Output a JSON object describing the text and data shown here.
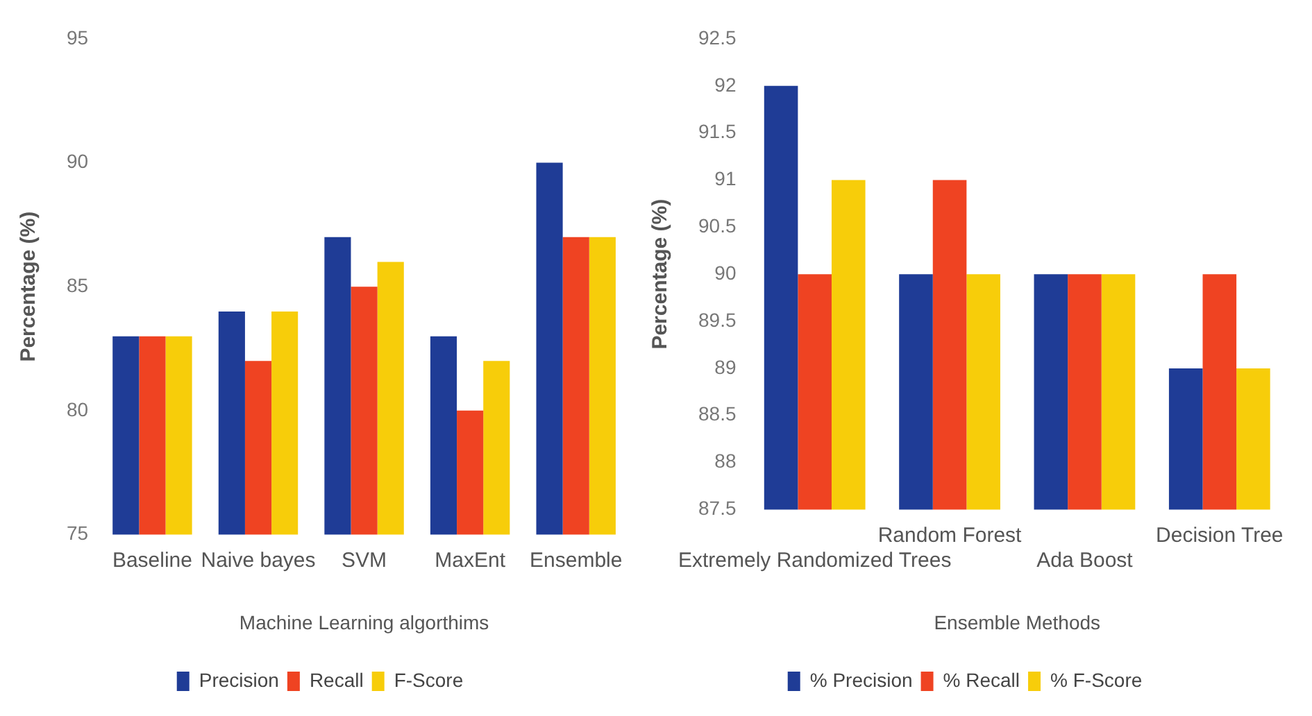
{
  "chart_data": [
    {
      "type": "bar",
      "xlabel": "Machine Learning algorthims",
      "ylabel": "Percentage (%)",
      "categories": [
        "Baseline",
        "Naive bayes",
        "SVM",
        "MaxEnt",
        "Ensemble"
      ],
      "series": [
        {
          "name": "Precision",
          "color": "#1f3c96",
          "values": [
            83,
            84,
            87,
            83,
            90
          ]
        },
        {
          "name": "Recall",
          "color": "#ef4322",
          "values": [
            83,
            82,
            85,
            80,
            87
          ]
        },
        {
          "name": "F-Score",
          "color": "#f7cd0a",
          "values": [
            83,
            84,
            86,
            82,
            87
          ]
        }
      ],
      "ylim": [
        75,
        95
      ],
      "yticks": [
        75,
        80,
        85,
        90,
        95
      ],
      "grid": false,
      "legend": "bottom"
    },
    {
      "type": "bar",
      "xlabel": "Ensemble Methods",
      "ylabel": "Percentage (%)",
      "categories": [
        "Extremely Randomized Trees",
        "Random Forest",
        "Ada Boost",
        "Decision Tree"
      ],
      "series": [
        {
          "name": "% Precision",
          "color": "#1f3c96",
          "values": [
            92,
            90,
            90,
            89
          ]
        },
        {
          "name": "% Recall",
          "color": "#ef4322",
          "values": [
            90,
            91,
            90,
            90
          ]
        },
        {
          "name": "% F-Score",
          "color": "#f7cd0a",
          "values": [
            91,
            90,
            90,
            89
          ]
        }
      ],
      "ylim": [
        87.5,
        92.5
      ],
      "yticks": [
        87.5,
        88,
        88.5,
        89,
        89.5,
        90,
        90.5,
        91,
        91.5,
        92,
        92.5
      ],
      "grid": false,
      "legend": "bottom"
    }
  ]
}
